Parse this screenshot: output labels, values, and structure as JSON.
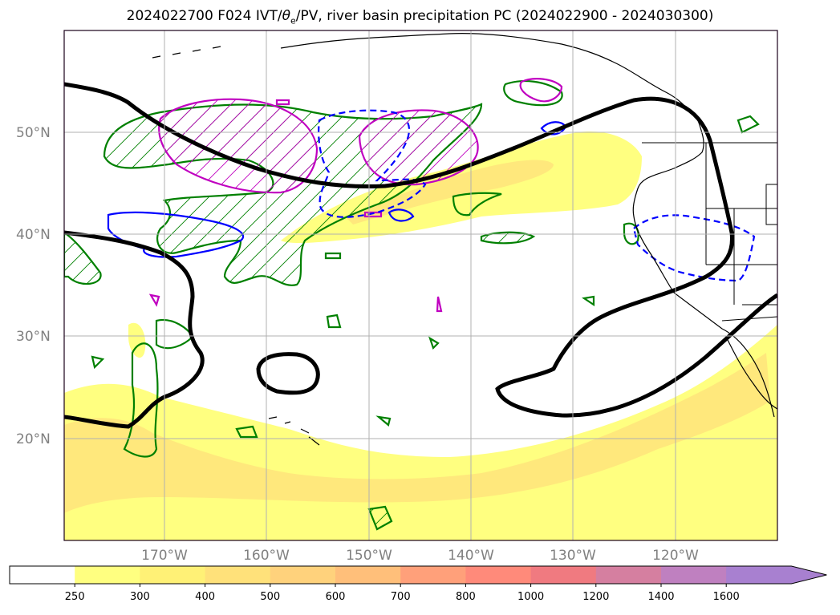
{
  "title": {
    "prefix": "2024022700 F024 IVT/",
    "theta": "θ",
    "sub": "e",
    "suffix": "/PV, river basin precipitation PC (2024022900 - 2024030300)"
  },
  "lat_labels": [
    "50°N",
    "40°N",
    "30°N",
    "20°N"
  ],
  "lon_labels": [
    "170°W",
    "160°W",
    "150°W",
    "140°W",
    "130°W",
    "120°W"
  ],
  "colorbar": {
    "levels": [
      "250",
      "300",
      "400",
      "500",
      "600",
      "700",
      "800",
      "1000",
      "1200",
      "1400",
      "1600"
    ],
    "colors": [
      "#ffffff",
      "#ffff80",
      "#fff176",
      "#ffe17a",
      "#ffd27c",
      "#ffbf7a",
      "#ffa07a",
      "#ff8a7a",
      "#f07a80",
      "#d57fa0",
      "#bf80c0",
      "#a880d0"
    ],
    "extend": "max"
  },
  "colors": {
    "ivt_fill": "#ffff80",
    "ivt_fill_dark": "#ffe27a",
    "ridge_line": "#000000",
    "green_contour": "#008000",
    "magenta_contour": "#c000c0",
    "blue_contour": "#0000ff",
    "coast": "#000000",
    "grid": "#b0b0b0"
  },
  "map_extent": {
    "lon": [
      -180,
      -110
    ],
    "lat": [
      10,
      60
    ]
  }
}
